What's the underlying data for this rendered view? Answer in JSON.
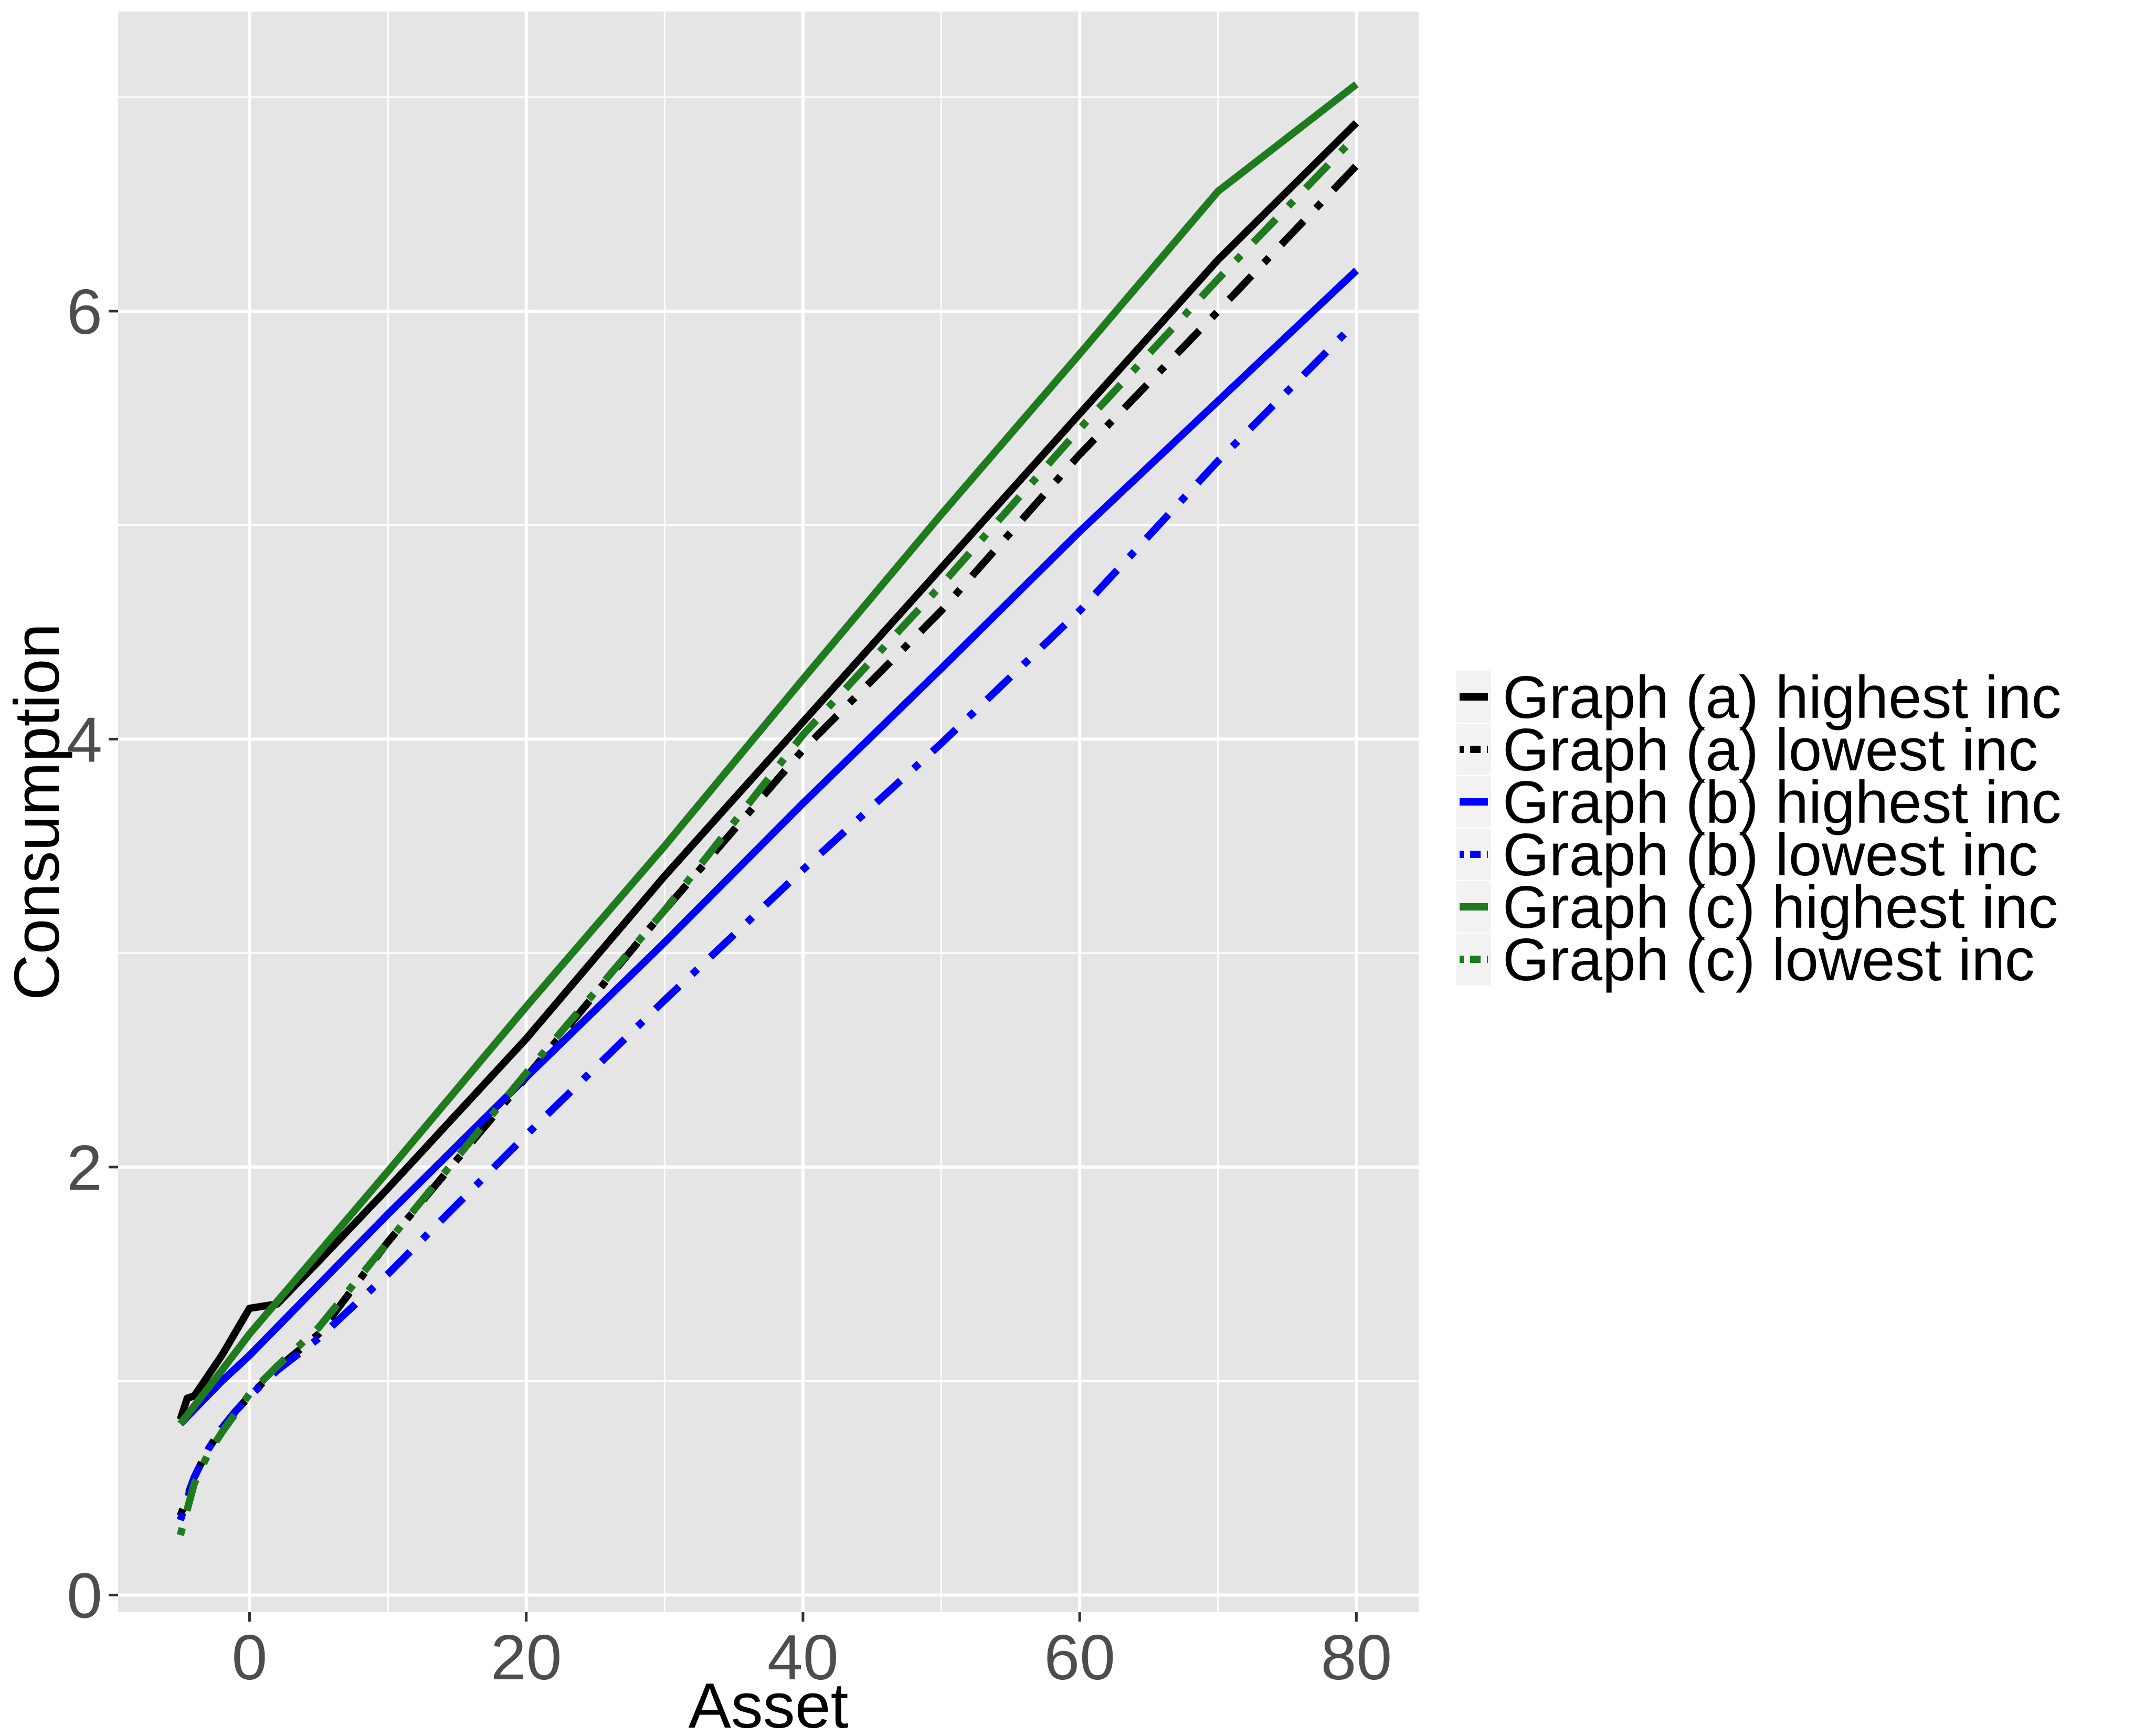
{
  "chart_data": {
    "type": "line",
    "xlabel": "Asset",
    "ylabel": "Consumption",
    "xlim": [
      -9.5,
      84.5
    ],
    "ylim": [
      -0.08,
      7.4
    ],
    "x_ticks": [
      0,
      20,
      40,
      60,
      80
    ],
    "x_tick_labels": [
      "0",
      "20",
      "40",
      "60",
      "80"
    ],
    "y_ticks": [
      0,
      2,
      4,
      6
    ],
    "y_tick_labels": [
      "0",
      "2",
      "4",
      "6"
    ],
    "grid": true,
    "legend_position": "right",
    "series": [
      {
        "name": "Graph (a) highest inc",
        "color": "#000000",
        "dash": "solid",
        "x": [
          -5,
          -4.5,
          -4,
          -2,
          0,
          1,
          2,
          5,
          10,
          20,
          30,
          40,
          50,
          60,
          70,
          80
        ],
        "y": [
          0.82,
          0.92,
          0.93,
          1.12,
          1.34,
          1.35,
          1.36,
          1.56,
          1.9,
          2.6,
          3.36,
          4.08,
          4.8,
          5.52,
          6.24,
          6.88
        ]
      },
      {
        "name": "Graph (a) lowest inc",
        "color": "#000000",
        "dash": "dotdash",
        "x": [
          -5,
          -4,
          -3,
          -2,
          -1,
          0,
          2,
          5,
          10,
          20,
          30,
          40,
          50,
          60,
          70,
          80
        ],
        "y": [
          0.37,
          0.55,
          0.68,
          0.78,
          0.86,
          0.93,
          1.06,
          1.22,
          1.65,
          2.42,
          3.2,
          3.95,
          4.6,
          5.33,
          6.0,
          6.68
        ]
      },
      {
        "name": "Graph (b) highest inc",
        "color": "#0000ff",
        "dash": "solid",
        "x": [
          -5,
          -2,
          0,
          5,
          10,
          20,
          30,
          40,
          50,
          60,
          70,
          80
        ],
        "y": [
          0.8,
          1.0,
          1.12,
          1.45,
          1.78,
          2.42,
          3.05,
          3.7,
          4.33,
          4.97,
          5.58,
          6.19
        ]
      },
      {
        "name": "Graph (b) lowest inc",
        "color": "#0000ff",
        "dash": "dotdash",
        "x": [
          -5,
          -4,
          -3,
          -2,
          -1,
          0,
          2,
          5,
          10,
          20,
          30,
          40,
          50,
          60,
          70,
          80
        ],
        "y": [
          0.35,
          0.55,
          0.68,
          0.78,
          0.86,
          0.93,
          1.05,
          1.2,
          1.5,
          2.15,
          2.78,
          3.39,
          3.98,
          4.6,
          5.3,
          5.95
        ]
      },
      {
        "name": "Graph (c) highest inc",
        "color": "#1e7b1e",
        "dash": "solid",
        "x": [
          -5,
          -2,
          0,
          5,
          10,
          20,
          30,
          40,
          50,
          60,
          70,
          80
        ],
        "y": [
          0.8,
          1.05,
          1.22,
          1.6,
          1.98,
          2.75,
          3.5,
          4.28,
          5.05,
          5.8,
          6.56,
          7.06
        ]
      },
      {
        "name": "Graph (c) lowest inc",
        "color": "#1e7b1e",
        "dash": "dotdash",
        "x": [
          -5,
          -4,
          -3,
          -2,
          -1,
          0,
          2,
          5,
          10,
          20,
          30,
          40,
          50,
          60,
          70,
          80
        ],
        "y": [
          0.28,
          0.52,
          0.66,
          0.76,
          0.85,
          0.94,
          1.07,
          1.25,
          1.65,
          2.44,
          3.2,
          4.02,
          4.72,
          5.45,
          6.15,
          6.82
        ]
      }
    ]
  },
  "colors": {
    "panel_background": "#e5e5e5",
    "grid_line": "#ffffff",
    "legend_key_background": "#f2f2f2"
  }
}
